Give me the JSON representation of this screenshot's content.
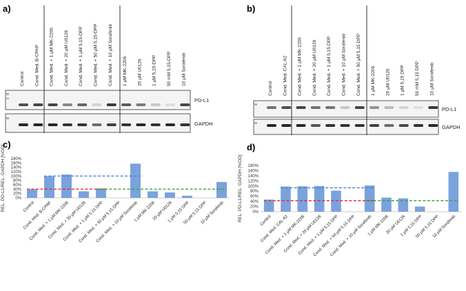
{
  "figure": {
    "panel_a": {
      "label": "a)",
      "lanes": [
        "Control",
        "Cond. Med. B-CPAP",
        "Cond. Med. + 1 µM MK-2206",
        "Cond. Med. + 20 µM U0126",
        "Cond. Med. + 1 µM 5,15-DPP",
        "Cond. Med. + 50 µM 5,15-DPP",
        "Cond. Med. + 10 µM Sorafenib",
        "1 µM MK-2206",
        "20 µM U0126",
        "1 µM 5,15-DPP",
        "50 mM 5,15-DPP",
        "10 µM Sorafenib"
      ],
      "blot_top": "PD-L1",
      "blot_bottom": "GAPDH"
    },
    "panel_b": {
      "label": "b)",
      "lanes": [
        "Control",
        "Cond. Med. CAL-62",
        "Cond. Med. + 1 µM MK-2206",
        "Cond. Med. + 20 µM U0126",
        "Cond. Med. + 1 µM 5,15 DPP",
        "Cond. Med. + 10 µM Sorafenib",
        "Cond. Med. + 50 µM 5,15 DPP",
        "1 µM MK-2206",
        "20 µM U0126",
        "1 µM 5,15 DPP",
        "50 mM 5,15 DPP",
        "10 µM Sorafenib"
      ],
      "blot_top": "PD-L1",
      "blot_bottom": "GAPDH"
    }
  },
  "chart_data": [
    {
      "panel": "c)",
      "type": "bar",
      "ylabel": "REL. PD-L1/REL. GAPDH [%OD]",
      "ylim": [
        0,
        180
      ],
      "yticks": [
        "0%",
        "20%",
        "40%",
        "60%",
        "80%",
        "100%",
        "120%",
        "140%",
        "160%",
        "180%"
      ],
      "categories": [
        "Control",
        "Cond. Med. B-CPAP",
        "Cond. Med. + 1 µM MK-2206",
        "Cond. Med. + 20 µM U0126",
        "Cond. Med. + 1 µM 5,15 DPP",
        "Cond. Med. + 50 µM 5,15 DPP",
        "Cond. Med. + 10 µM Sorafenib",
        "1 µM MK-2206",
        "20 µM U0126",
        "1 µM 5,15 DPP",
        "50 µM 5,15 DPP",
        "10 µM Sorafenib"
      ],
      "values": [
        40,
        100,
        107,
        30,
        43,
        0,
        157,
        30,
        25,
        10,
        0,
        73
      ],
      "reference_lines": [
        {
          "color": "#e0302a",
          "value": 40,
          "from": 0,
          "to": 4
        },
        {
          "color": "#4a86d0",
          "value": 100,
          "from": 1,
          "to": 6
        },
        {
          "color": "#3aa83a",
          "value": 40,
          "from": 4,
          "to": 11
        }
      ],
      "bar_color": "#7aa2dc"
    },
    {
      "panel": "d)",
      "type": "bar",
      "ylabel": "REL. PD-L1/REL. GAPDH [%OD]",
      "ylim": [
        0,
        180
      ],
      "yticks": [
        "0%",
        "20%",
        "40%",
        "60%",
        "80%",
        "100%",
        "120%",
        "140%",
        "160%",
        "180%"
      ],
      "categories": [
        "Control",
        "Cond. Med. CAL-62",
        "Cond. Med. + 1 µM MK-2206",
        "Cond. Med. + 20 µM U0126",
        "Cond. Med. + 1 µM 5,15 DPP",
        "Cond. Med. + 50 µM 5,15 DPP",
        "Cond. Med. + 10 µM Sorafenib",
        "1 µM MK-2206",
        "20 µM U0126",
        "1 µM 5,15 DPP",
        "50 µM 5,15 DPP",
        "10 µM Sorafenib"
      ],
      "values": [
        47,
        98,
        99,
        100,
        82,
        0,
        102,
        55,
        52,
        20,
        0,
        155
      ],
      "reference_lines": [
        {
          "color": "#e0302a",
          "value": 43,
          "from": 0,
          "to": 6
        },
        {
          "color": "#4a86d0",
          "value": 93,
          "from": 1,
          "to": 6
        },
        {
          "color": "#3aa83a",
          "value": 43,
          "from": 6,
          "to": 11
        }
      ],
      "bar_color": "#7aa2dc"
    }
  ]
}
